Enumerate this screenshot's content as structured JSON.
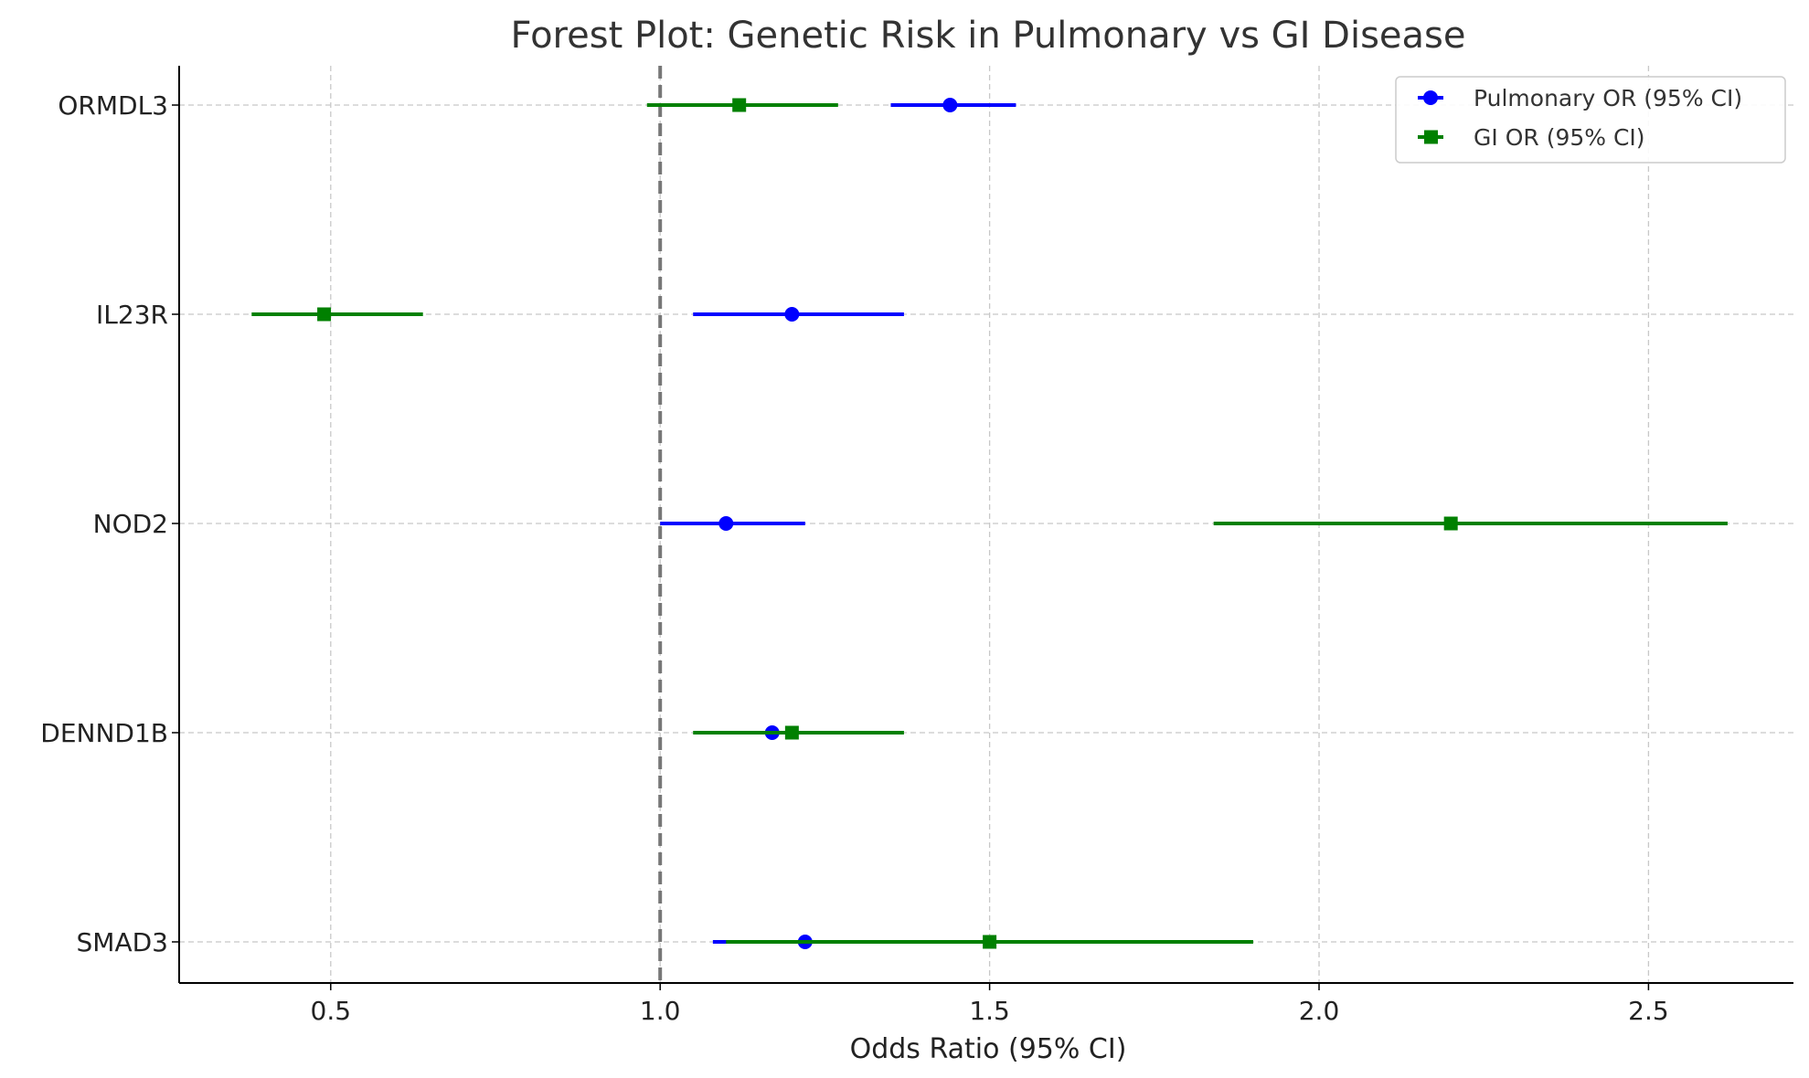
{
  "chart_data": {
    "type": "scatter",
    "subtype": "forest-plot",
    "title": "Forest Plot: Genetic Risk in Pulmonary vs GI Disease",
    "xlabel": "Odds Ratio (95% CI)",
    "ylabel": "",
    "xlim": [
      0.27,
      2.72
    ],
    "xticks": [
      0.5,
      1.0,
      1.5,
      2.0,
      2.5
    ],
    "xtick_labels": [
      "0.5",
      "1.0",
      "1.5",
      "2.0",
      "2.5"
    ],
    "categories": [
      "ORMDL3",
      "IL23R",
      "NOD2",
      "DENND1B",
      "SMAD3"
    ],
    "reference_line": {
      "x": 1.0,
      "style": "dashed",
      "color": "#777777"
    },
    "grid": true,
    "legend": {
      "position": "top-right"
    },
    "series": [
      {
        "name": "Pulmonary OR (95% CI)",
        "color": "#0000ff",
        "marker": "circle",
        "values": [
          1.44,
          1.2,
          1.1,
          1.17,
          1.22
        ],
        "ci_low": [
          1.35,
          1.05,
          1.0,
          1.17,
          1.08
        ],
        "ci_high": [
          1.54,
          1.37,
          1.22,
          1.17,
          1.35
        ]
      },
      {
        "name": "GI OR (95% CI)",
        "color": "#008000",
        "marker": "square",
        "values": [
          1.12,
          0.49,
          2.2,
          1.2,
          1.5
        ],
        "ci_low": [
          0.98,
          0.38,
          1.84,
          1.05,
          1.1
        ],
        "ci_high": [
          1.27,
          0.64,
          2.62,
          1.37,
          1.9
        ]
      }
    ]
  }
}
